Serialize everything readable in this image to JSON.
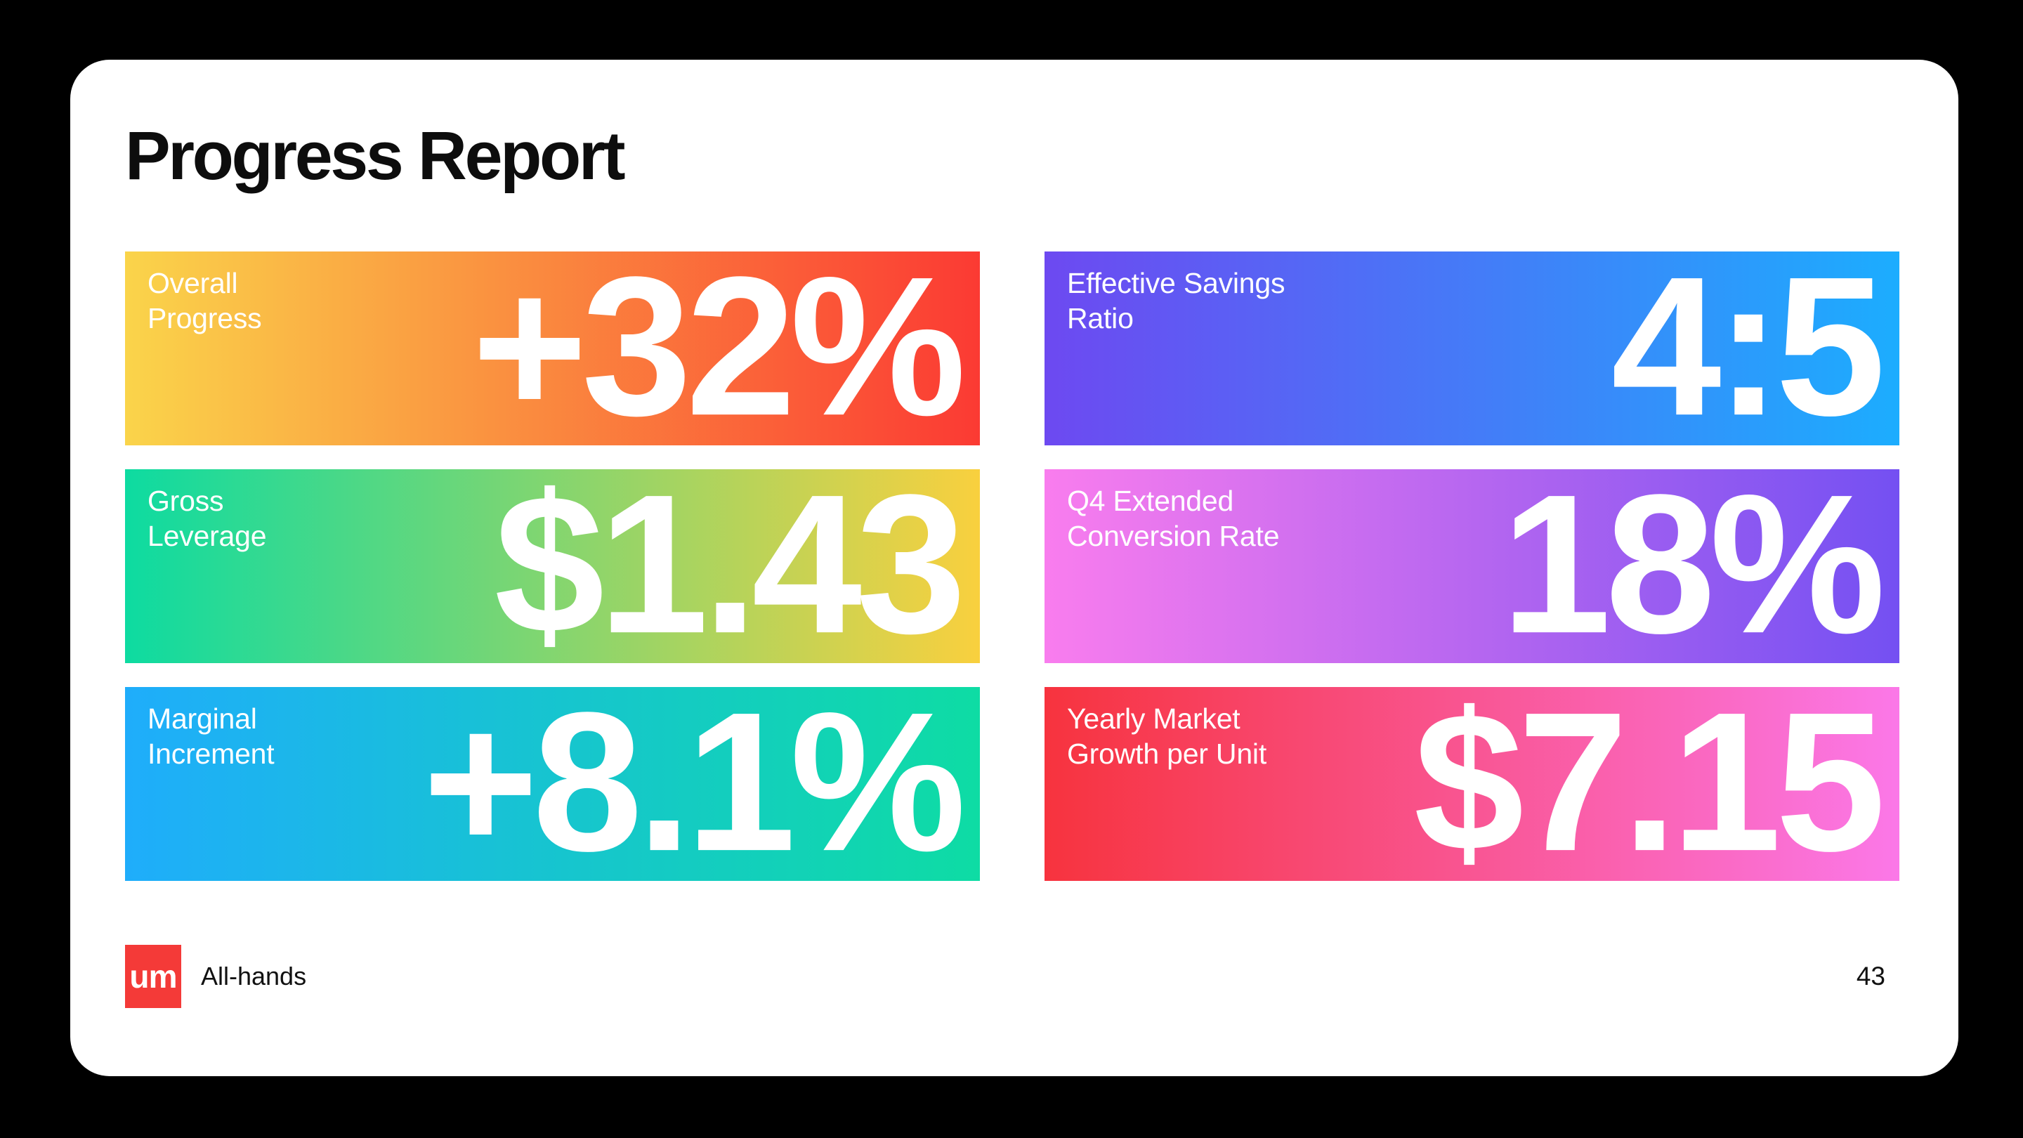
{
  "slide": {
    "title": "Progress Report",
    "cards": [
      {
        "label": "Overall\nProgress",
        "value": "+32%",
        "gradient_from": "#FAD44A",
        "gradient_to": "#FB3A33"
      },
      {
        "label": "Effective Savings\nRatio",
        "value": "4:5",
        "gradient_from": "#6D49F1",
        "gradient_to": "#1CADFE"
      },
      {
        "label": "Gross\nLeverage",
        "value": "$1.43",
        "gradient_from": "#0DDBA1",
        "gradient_to": "#F9D03E"
      },
      {
        "label": "Q4 Extended\nConversion Rate",
        "value": "18%",
        "gradient_from": "#F97DEE",
        "gradient_to": "#7450F2"
      },
      {
        "label": "Marginal\nIncrement",
        "value": "+8.1%",
        "gradient_from": "#1FADFB",
        "gradient_to": "#0EDCA4"
      },
      {
        "label": "Yearly Market\nGrowth per Unit",
        "value": "$7.15",
        "gradient_from": "#F7333E",
        "gradient_to": "#FB78E8"
      }
    ],
    "footer": {
      "logo_text": "um",
      "logo_color": "#F43A38",
      "brand": "All-hands",
      "page_number": "43"
    }
  }
}
